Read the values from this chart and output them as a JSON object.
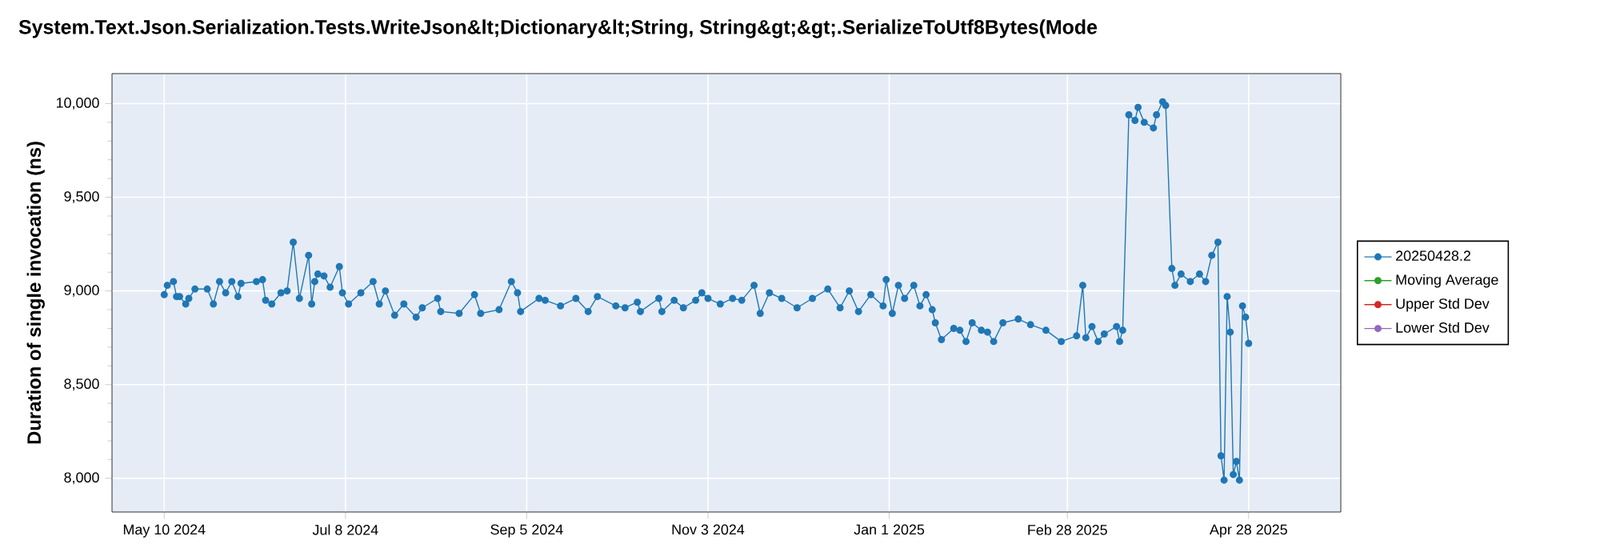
{
  "chart_data": {
    "type": "line",
    "title": "System.Text.Json.Serialization.Tests.WriteJson&lt;Dictionary&lt;String, String&gt;&gt;.SerializeToUtf8Bytes(Mode",
    "ylabel": "Duration of single invocation (ns)",
    "x": [
      "2024-05-10",
      "2024-05-11",
      "2024-05-13",
      "2024-05-14",
      "2024-05-15",
      "2024-05-17",
      "2024-05-18",
      "2024-05-20",
      "2024-05-24",
      "2024-05-26",
      "2024-05-28",
      "2024-05-30",
      "2024-06-01",
      "2024-06-03",
      "2024-06-04",
      "2024-06-09",
      "2024-06-11",
      "2024-06-12",
      "2024-06-14",
      "2024-06-17",
      "2024-06-19",
      "2024-06-21",
      "2024-06-23",
      "2024-06-26",
      "2024-06-27",
      "2024-06-28",
      "2024-06-29",
      "2024-07-01",
      "2024-07-03",
      "2024-07-06",
      "2024-07-07",
      "2024-07-09",
      "2024-07-13",
      "2024-07-17",
      "2024-07-19",
      "2024-07-21",
      "2024-07-24",
      "2024-07-27",
      "2024-07-31",
      "2024-08-02",
      "2024-08-07",
      "2024-08-08",
      "2024-08-14",
      "2024-08-19",
      "2024-08-21",
      "2024-08-27",
      "2024-08-31",
      "2024-09-02",
      "2024-09-03",
      "2024-09-09",
      "2024-09-11",
      "2024-09-16",
      "2024-09-21",
      "2024-09-25",
      "2024-09-28",
      "2024-10-04",
      "2024-10-07",
      "2024-10-11",
      "2024-10-12",
      "2024-10-18",
      "2024-10-19",
      "2024-10-23",
      "2024-10-26",
      "2024-10-30",
      "2024-11-01",
      "2024-11-03",
      "2024-11-07",
      "2024-11-11",
      "2024-11-14",
      "2024-11-18",
      "2024-11-20",
      "2024-11-23",
      "2024-11-27",
      "2024-12-02",
      "2024-12-07",
      "2024-12-12",
      "2024-12-16",
      "2024-12-19",
      "2024-12-22",
      "2024-12-26",
      "2024-12-30",
      "2024-12-31",
      "2025-01-02",
      "2025-01-04",
      "2025-01-06",
      "2025-01-09",
      "2025-01-11",
      "2025-01-13",
      "2025-01-15",
      "2025-01-16",
      "2025-01-18",
      "2025-01-22",
      "2025-01-24",
      "2025-01-26",
      "2025-01-28",
      "2025-01-31",
      "2025-02-02",
      "2025-02-04",
      "2025-02-07",
      "2025-02-12",
      "2025-02-16",
      "2025-02-21",
      "2025-02-26",
      "2025-03-03",
      "2025-03-05",
      "2025-03-06",
      "2025-03-08",
      "2025-03-10",
      "2025-03-12",
      "2025-03-16",
      "2025-03-17",
      "2025-03-18",
      "2025-03-20",
      "2025-03-22",
      "2025-03-23",
      "2025-03-25",
      "2025-03-28",
      "2025-03-29",
      "2025-03-31",
      "2025-04-01",
      "2025-04-03",
      "2025-04-04",
      "2025-04-06",
      "2025-04-09",
      "2025-04-12",
      "2025-04-14",
      "2025-04-16",
      "2025-04-18",
      "2025-04-19",
      "2025-04-20",
      "2025-04-21",
      "2025-04-22",
      "2025-04-23",
      "2025-04-24",
      "2025-04-25",
      "2025-04-26",
      "2025-04-27",
      "2025-04-28"
    ],
    "series": [
      {
        "name": "20250428.2",
        "color": "#1f77b4",
        "values": [
          8980,
          9030,
          9050,
          8970,
          8970,
          8930,
          8960,
          9010,
          9010,
          8930,
          9050,
          8990,
          9050,
          8970,
          9040,
          9050,
          9060,
          8950,
          8930,
          8990,
          9000,
          9260,
          8960,
          9190,
          8930,
          9050,
          9090,
          9080,
          9020,
          9130,
          8990,
          8930,
          8990,
          9050,
          8930,
          9000,
          8870,
          8930,
          8860,
          8910,
          8960,
          8890,
          8880,
          8980,
          8880,
          8900,
          9050,
          8990,
          8890,
          8960,
          8950,
          8920,
          8960,
          8890,
          8970,
          8920,
          8910,
          8940,
          8890,
          8960,
          8890,
          8950,
          8910,
          8950,
          8990,
          8960,
          8930,
          8960,
          8950,
          9030,
          8880,
          8990,
          8960,
          8910,
          8960,
          9010,
          8910,
          9000,
          8890,
          8980,
          8920,
          9060,
          8880,
          9030,
          8960,
          9030,
          8920,
          8980,
          8900,
          8830,
          8740,
          8800,
          8790,
          8730,
          8830,
          8790,
          8780,
          8730,
          8830,
          8850,
          8820,
          8790,
          8730,
          8760,
          9030,
          8750,
          8810,
          8730,
          8770,
          8810,
          8730,
          8790,
          9940,
          9910,
          9980,
          9900,
          9870,
          9940,
          10010,
          9990,
          9120,
          9030,
          9090,
          9050,
          9090,
          9050,
          9190,
          9260,
          8120,
          7990,
          8970,
          8780,
          8020,
          8090,
          7990,
          8920,
          8860,
          8720
        ]
      },
      {
        "name": "Moving Average",
        "color": "#2ca02c",
        "values": [
          null,
          null,
          null,
          null,
          null,
          null,
          null,
          null,
          null,
          null,
          null,
          null,
          null,
          null,
          null,
          null,
          null,
          null,
          null,
          null,
          null,
          null,
          null,
          null,
          null,
          null,
          null,
          null,
          null,
          null,
          null,
          null,
          null,
          null,
          null,
          null,
          null,
          null,
          null,
          null,
          null,
          null,
          null,
          null,
          null,
          null,
          null,
          null,
          null,
          null,
          null,
          null,
          null,
          null,
          null,
          null,
          null,
          null,
          null,
          null,
          null,
          null,
          null,
          null,
          null,
          null,
          null,
          null,
          null,
          null,
          null,
          null,
          null,
          null,
          null,
          null,
          null,
          null,
          null,
          null,
          null,
          null,
          null,
          null,
          null,
          null,
          null,
          null,
          null,
          null,
          null,
          null,
          null,
          null,
          null,
          null,
          null,
          null,
          null,
          null,
          null,
          null,
          null,
          null,
          null,
          null,
          null,
          null,
          null,
          null,
          null,
          null,
          null,
          null,
          null,
          null,
          null,
          null,
          null,
          null,
          null,
          null,
          null,
          null,
          null,
          null,
          null,
          null,
          null,
          null,
          null,
          null,
          null,
          null,
          null,
          null,
          null,
          null
        ]
      },
      {
        "name": "Upper Std Dev",
        "color": "#d62728",
        "values": [
          null,
          null,
          null,
          null,
          null,
          null,
          null,
          null,
          null,
          null,
          null,
          null,
          null,
          null,
          null,
          null,
          null,
          null,
          null,
          null,
          null,
          null,
          null,
          null,
          null,
          null,
          null,
          null,
          null,
          null,
          null,
          null,
          null,
          null,
          null,
          null,
          null,
          null,
          null,
          null,
          null,
          null,
          null,
          null,
          null,
          null,
          null,
          null,
          null,
          null,
          null,
          null,
          null,
          null,
          null,
          null,
          null,
          null,
          null,
          null,
          null,
          null,
          null,
          null,
          null,
          null,
          null,
          null,
          null,
          null,
          null,
          null,
          null,
          null,
          null,
          null,
          null,
          null,
          null,
          null,
          null,
          null,
          null,
          null,
          null,
          null,
          null,
          null,
          null,
          null,
          null,
          null,
          null,
          null,
          null,
          null,
          null,
          null,
          null,
          null,
          null,
          null,
          null,
          null,
          null,
          null,
          null,
          null,
          null,
          null,
          null,
          null,
          null,
          null,
          null,
          null,
          null,
          null,
          null,
          null,
          null,
          null,
          null,
          null,
          null,
          null,
          null,
          null,
          null,
          null,
          null,
          null,
          null,
          null,
          null,
          null,
          null,
          null
        ]
      },
      {
        "name": "Lower Std Dev",
        "color": "#9467bd",
        "values": [
          null,
          null,
          null,
          null,
          null,
          null,
          null,
          null,
          null,
          null,
          null,
          null,
          null,
          null,
          null,
          null,
          null,
          null,
          null,
          null,
          null,
          null,
          null,
          null,
          null,
          null,
          null,
          null,
          null,
          null,
          null,
          null,
          null,
          null,
          null,
          null,
          null,
          null,
          null,
          null,
          null,
          null,
          null,
          null,
          null,
          null,
          null,
          null,
          null,
          null,
          null,
          null,
          null,
          null,
          null,
          null,
          null,
          null,
          null,
          null,
          null,
          null,
          null,
          null,
          null,
          null,
          null,
          null,
          null,
          null,
          null,
          null,
          null,
          null,
          null,
          null,
          null,
          null,
          null,
          null,
          null,
          null,
          null,
          null,
          null,
          null,
          null,
          null,
          null,
          null,
          null,
          null,
          null,
          null,
          null,
          null,
          null,
          null,
          null,
          null,
          null,
          null,
          null,
          null,
          null,
          null,
          null,
          null,
          null,
          null,
          null,
          null,
          null,
          null,
          null,
          null,
          null,
          null,
          null,
          null,
          null,
          null,
          null,
          null,
          null,
          null,
          null,
          null,
          null,
          null,
          null,
          null,
          null,
          null,
          null,
          null,
          null,
          null
        ]
      }
    ],
    "xlim": [
      "2024-04-23",
      "2025-05-28"
    ],
    "xticks": [
      {
        "value": "2024-05-10",
        "label": "May 10 2024"
      },
      {
        "value": "2024-07-08",
        "label": "Jul 8 2024"
      },
      {
        "value": "2024-09-05",
        "label": "Sep 5 2024"
      },
      {
        "value": "2024-11-03",
        "label": "Nov 3 2024"
      },
      {
        "value": "2025-01-01",
        "label": "Jan 1 2025"
      },
      {
        "value": "2025-02-28",
        "label": "Feb 28 2025"
      },
      {
        "value": "2025-04-28",
        "label": "Apr 28 2025"
      }
    ],
    "ylim": [
      7820,
      10160
    ],
    "yticks": [
      {
        "value": 8000,
        "label": "8,000"
      },
      {
        "value": 8500,
        "label": "8,500"
      },
      {
        "value": 9000,
        "label": "9,000"
      },
      {
        "value": 9500,
        "label": "9,500"
      },
      {
        "value": 10000,
        "label": "10,000"
      }
    ],
    "grid": true,
    "legend": "right",
    "marker": "circle",
    "line_style": "solid"
  }
}
